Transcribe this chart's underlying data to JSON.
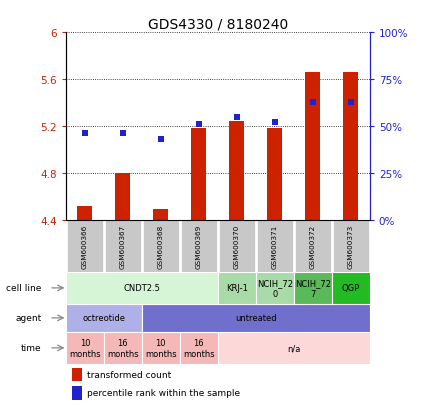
{
  "title": "GDS4330 / 8180240",
  "samples": [
    "GSM600366",
    "GSM600367",
    "GSM600368",
    "GSM600369",
    "GSM600370",
    "GSM600371",
    "GSM600372",
    "GSM600373"
  ],
  "bar_values": [
    4.52,
    4.8,
    4.49,
    5.18,
    5.24,
    5.18,
    5.66,
    5.66
  ],
  "bar_bottom": 4.4,
  "percentile_values": [
    46,
    46,
    43,
    51,
    55,
    52,
    63,
    63
  ],
  "ylim_left": [
    4.4,
    6.0
  ],
  "ylim_right": [
    0,
    100
  ],
  "yticks_left": [
    4.4,
    4.8,
    5.2,
    5.6,
    6.0
  ],
  "ytick_labels_left": [
    "4.4",
    "4.8",
    "5.2",
    "5.6",
    "6"
  ],
  "yticks_right": [
    0,
    25,
    50,
    75,
    100
  ],
  "ytick_labels_right": [
    "0%",
    "25%",
    "50%",
    "75%",
    "100%"
  ],
  "bar_color": "#cc2200",
  "dot_color": "#2222cc",
  "cell_line_data": [
    {
      "label": "CNDT2.5",
      "start": 0,
      "end": 4,
      "color": "#d6f5d6"
    },
    {
      "label": "KRJ-1",
      "start": 4,
      "end": 5,
      "color": "#a8dba8"
    },
    {
      "label": "NCIH_72\n0",
      "start": 5,
      "end": 6,
      "color": "#a8dba8"
    },
    {
      "label": "NCIH_72\n7",
      "start": 6,
      "end": 7,
      "color": "#5aba5a"
    },
    {
      "label": "QGP",
      "start": 7,
      "end": 8,
      "color": "#22bb22"
    }
  ],
  "agent_data": [
    {
      "label": "octreotide",
      "start": 0,
      "end": 2,
      "color": "#b0b0e8"
    },
    {
      "label": "untreated",
      "start": 2,
      "end": 8,
      "color": "#7070cc"
    }
  ],
  "time_data": [
    {
      "label": "10\nmonths",
      "start": 0,
      "end": 1,
      "color": "#f5b8b8"
    },
    {
      "label": "16\nmonths",
      "start": 1,
      "end": 2,
      "color": "#f5b8b8"
    },
    {
      "label": "10\nmonths",
      "start": 2,
      "end": 3,
      "color": "#f5b8b8"
    },
    {
      "label": "16\nmonths",
      "start": 3,
      "end": 4,
      "color": "#f5b8b8"
    },
    {
      "label": "n/a",
      "start": 4,
      "end": 8,
      "color": "#fdd8d8"
    }
  ],
  "row_labels": [
    "cell line",
    "agent",
    "time"
  ],
  "legend_items": [
    {
      "label": "transformed count",
      "color": "#cc2200"
    },
    {
      "label": "percentile rank within the sample",
      "color": "#2222cc"
    }
  ],
  "background_color": "#ffffff",
  "tick_label_color_left": "#cc2200",
  "tick_label_color_right": "#2222cc"
}
